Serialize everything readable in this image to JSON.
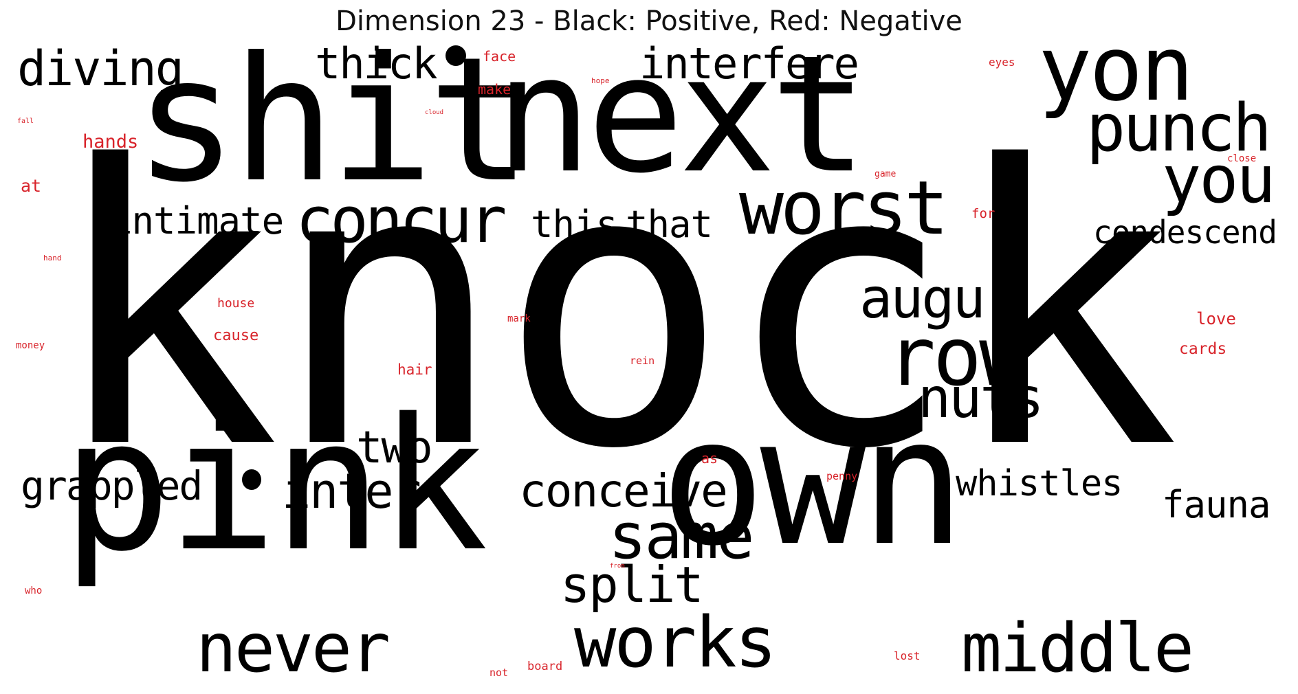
{
  "title": "Dimension 23 - Black: Positive, Red: Negative",
  "colors": {
    "positive": "#000000",
    "negative": "#d8232a"
  },
  "positive_words": [
    "knock",
    "shit",
    "next",
    "pink",
    "own",
    "yon",
    "punch",
    "you",
    "worst",
    "concur",
    "row",
    "augur",
    "nuts",
    "diving",
    "thick",
    "interfere",
    "intimate",
    "this",
    "that",
    "condescend",
    "two",
    "grappled",
    "inter",
    "conceive",
    "same",
    "split",
    "whistles",
    "fauna",
    "never",
    "works",
    "middle"
  ],
  "negative_words": [
    "face",
    "make",
    "hope",
    "eyes",
    "cloud",
    "fall",
    "hands",
    "at",
    "game",
    "close",
    "for",
    "hand",
    "house",
    "mark",
    "love",
    "cause",
    "money",
    "rein",
    "hair",
    "cards",
    "as",
    "penny",
    "from",
    "who",
    "not",
    "board",
    "lost"
  ]
}
